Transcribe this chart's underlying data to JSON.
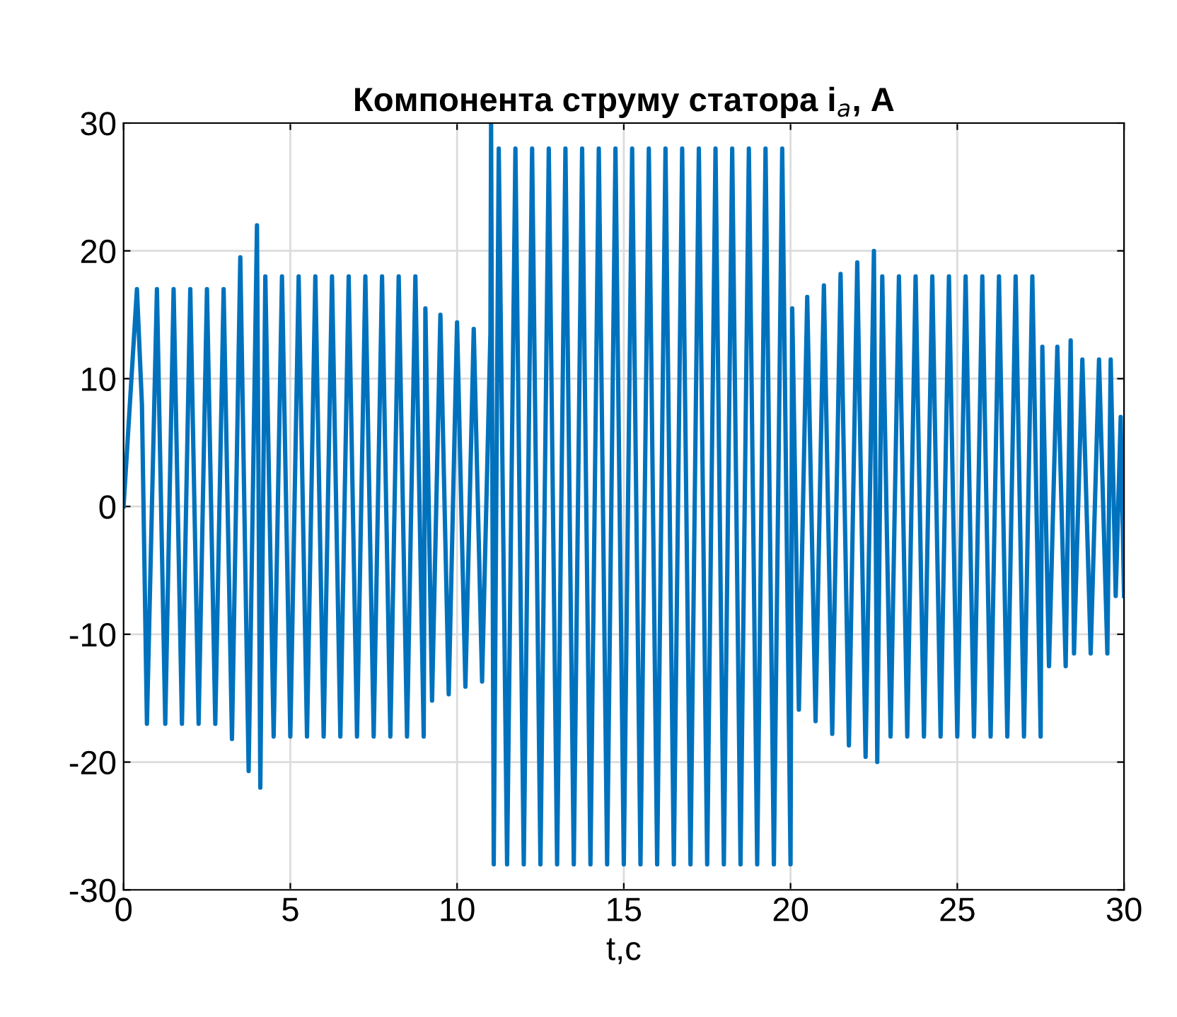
{
  "chart_data": {
    "type": "line",
    "title": "Компонента струму статора i$_{a}$, A",
    "xlabel": "t,c",
    "series": [
      {
        "color": "#0072bd",
        "x": [
          0,
          0.4,
          0.55,
          0.7,
          1.0,
          1.25,
          1.5,
          1.75,
          2.0,
          2.25,
          2.5,
          2.75,
          3.0,
          3.25,
          3.5,
          3.75,
          4.0,
          4.1,
          4.25,
          4.5,
          4.75,
          5.0,
          5.25,
          5.5,
          5.75,
          6.0,
          6.25,
          6.5,
          6.75,
          7.0,
          7.25,
          7.5,
          7.75,
          8.0,
          8.25,
          8.5,
          8.75,
          9.0,
          9.05,
          9.25,
          9.5,
          9.75,
          10.0,
          10.25,
          10.5,
          10.75,
          11.0,
          11.02,
          11.1,
          11.25,
          11.5,
          11.75,
          12.0,
          12.25,
          12.5,
          12.75,
          13.0,
          13.25,
          13.5,
          13.75,
          14.0,
          14.25,
          14.5,
          14.75,
          15.0,
          15.25,
          15.5,
          15.75,
          16.0,
          16.25,
          16.5,
          16.75,
          17.0,
          17.25,
          17.5,
          17.75,
          18.0,
          18.25,
          18.5,
          18.75,
          19.0,
          19.25,
          19.5,
          19.75,
          20.0,
          20.05,
          20.25,
          20.5,
          20.75,
          21.0,
          21.25,
          21.5,
          21.75,
          22.0,
          22.25,
          22.5,
          22.6,
          22.75,
          23.0,
          23.25,
          23.5,
          23.75,
          24.0,
          24.25,
          24.5,
          24.75,
          25.0,
          25.25,
          25.5,
          25.75,
          26.0,
          26.25,
          26.5,
          26.75,
          27.0,
          27.25,
          27.5,
          27.55,
          27.75,
          28.0,
          28.25,
          28.4,
          28.5,
          28.75,
          29.0,
          29.25,
          29.5,
          29.6,
          29.75,
          29.9,
          30.0
        ],
        "values": [
          0,
          17,
          8,
          -17,
          17,
          -17,
          17,
          -17,
          17,
          -17,
          17,
          -17,
          17,
          -18.2,
          19.5,
          -20.7,
          22,
          -22,
          18,
          -18,
          18,
          -18,
          18,
          -18,
          18,
          -18,
          18,
          -18,
          18,
          -18,
          18,
          -18,
          18,
          -18,
          18,
          -18,
          18,
          -18,
          15.5,
          -15.2,
          15,
          -14.7,
          14.4,
          -14.1,
          13.9,
          -13.7,
          13.5,
          30,
          -28,
          28,
          -28,
          28,
          -28,
          28,
          -28,
          28,
          -28,
          28,
          -28,
          28,
          -28,
          28,
          -28,
          28,
          -28,
          28,
          -28,
          28,
          -28,
          28,
          -28,
          28,
          -28,
          28,
          -28,
          28,
          -28,
          28,
          -28,
          28,
          -28,
          28,
          -28,
          28,
          -28,
          15.5,
          -15.9,
          16.4,
          -16.8,
          17.3,
          -17.8,
          18.2,
          -18.7,
          19.1,
          -19.6,
          20,
          -20,
          18,
          -18,
          18,
          -18,
          18,
          -18,
          18,
          -18,
          18,
          -18,
          18,
          -18,
          18,
          -18,
          18,
          -18,
          18,
          -18,
          18,
          -18,
          12.5,
          -12.5,
          12.5,
          -12.5,
          13,
          -11.5,
          11.5,
          -11.5,
          11.5,
          -11.5,
          11.5,
          -7,
          7,
          -7
        ]
      }
    ],
    "xlim": [
      0,
      30
    ],
    "xticks": [
      0,
      5,
      10,
      15,
      20,
      25,
      30
    ],
    "ylim": [
      -30,
      30
    ],
    "yticks": [
      -30,
      -20,
      -10,
      0,
      10,
      20,
      30
    ],
    "grid": true,
    "legend": false,
    "marker": "none",
    "line_style": "solid"
  }
}
